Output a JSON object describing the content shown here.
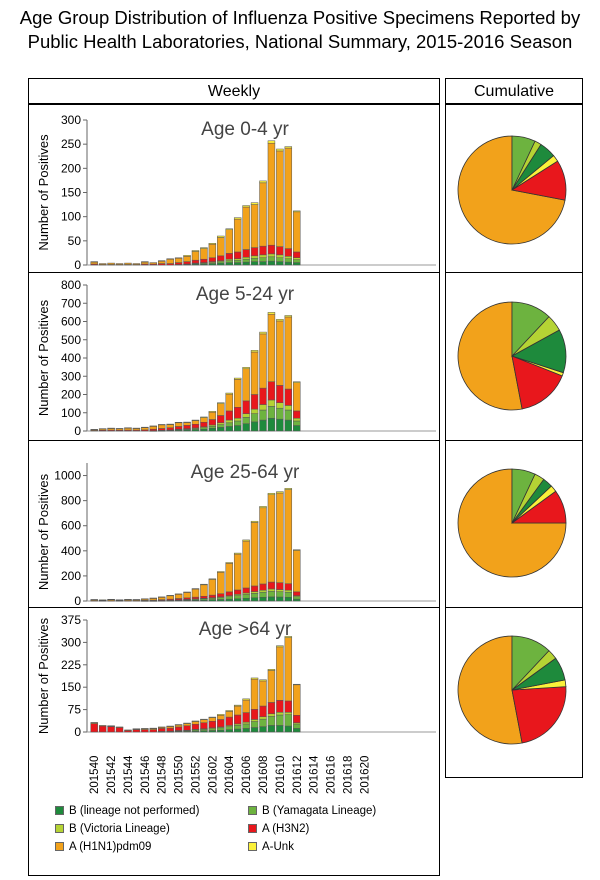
{
  "title_line1": "Age Group Distribution of Influenza Positive Specimens Reported by",
  "title_line2": "Public Health Laboratories, National Summary, 2015-2016 Season",
  "weekly_header": "Weekly",
  "cumulative_header": "Cumulative",
  "colors": {
    "b_lineage_not_performed": "#1e8a3c",
    "b_yamagata": "#6db33f",
    "b_victoria": "#b5d334",
    "a_h3n2": "#e8171c",
    "a_h1n1pdm09": "#f2a21b",
    "a_unk": "#fbf13a"
  },
  "legend": [
    {
      "key": "b_lineage_not_performed",
      "label": "B (lineage not performed)"
    },
    {
      "key": "b_yamagata",
      "label": "B (Yamagata Lineage)"
    },
    {
      "key": "b_victoria",
      "label": "B (Victoria Lineage)"
    },
    {
      "key": "a_h3n2",
      "label": "A (H3N2)"
    },
    {
      "key": "a_h1n1pdm09",
      "label": "A (H1N1)pdm09"
    },
    {
      "key": "a_unk",
      "label": "A-Unk"
    }
  ],
  "chart_data": [
    {
      "type": "bar",
      "stacked": true,
      "title": "Age 0-4 yr",
      "ylabel": "Number of Positives",
      "ylim": [
        0,
        300
      ],
      "yticks": [
        0,
        50,
        100,
        150,
        200,
        250,
        300
      ],
      "x_ticks": [
        "201540",
        "201542",
        "201544",
        "201546",
        "201548",
        "201550",
        "201552",
        "201602",
        "201604",
        "201606",
        "201608",
        "201610",
        "201612",
        "201614",
        "201616",
        "201618",
        "201620"
      ],
      "categories": [
        "201540",
        "201541",
        "201542",
        "201543",
        "201544",
        "201545",
        "201546",
        "201547",
        "201548",
        "201549",
        "201550",
        "201551",
        "201552",
        "201553",
        "201601",
        "201602",
        "201603",
        "201604",
        "201605",
        "201606",
        "201607",
        "201608",
        "201609",
        "201610",
        "201611"
      ],
      "series": [
        {
          "key": "b_lineage_not_performed",
          "values": [
            0,
            0,
            0,
            0,
            0,
            0,
            0,
            0,
            0,
            0,
            1,
            1,
            2,
            2,
            3,
            4,
            5,
            5,
            6,
            7,
            7,
            8,
            7,
            6,
            5
          ]
        },
        {
          "key": "b_yamagata",
          "values": [
            0,
            0,
            0,
            0,
            0,
            0,
            0,
            0,
            0,
            0,
            0,
            1,
            1,
            2,
            2,
            3,
            4,
            5,
            6,
            7,
            8,
            9,
            8,
            7,
            6
          ]
        },
        {
          "key": "b_victoria",
          "values": [
            0,
            0,
            0,
            0,
            0,
            0,
            0,
            0,
            0,
            0,
            0,
            0,
            1,
            1,
            2,
            2,
            3,
            3,
            4,
            5,
            6,
            6,
            6,
            5,
            4
          ]
        },
        {
          "key": "a_h3n2",
          "values": [
            2,
            1,
            1,
            1,
            1,
            1,
            2,
            2,
            3,
            3,
            4,
            5,
            6,
            7,
            8,
            10,
            12,
            14,
            16,
            17,
            18,
            18,
            17,
            16,
            12
          ]
        },
        {
          "key": "a_h1n1pdm09",
          "values": [
            4,
            2,
            3,
            2,
            3,
            2,
            4,
            3,
            5,
            9,
            9,
            11,
            18,
            22,
            28,
            38,
            49,
            68,
            88,
            89,
            131,
            211,
            198,
            208,
            83
          ]
        },
        {
          "key": "a_unk",
          "values": [
            1,
            0,
            0,
            0,
            0,
            0,
            1,
            0,
            1,
            1,
            1,
            2,
            2,
            2,
            2,
            3,
            2,
            3,
            3,
            4,
            4,
            5,
            4,
            3,
            2
          ]
        }
      ],
      "pie": {
        "a_h1n1pdm09": 72,
        "a_h3n2": 12,
        "a_unk": 2,
        "b_victoria": 2,
        "b_lineage_not_performed": 5,
        "b_yamagata": 7
      }
    },
    {
      "type": "bar",
      "stacked": true,
      "title": "Age 5-24 yr",
      "ylabel": "Number of Positives",
      "ylim": [
        0,
        800
      ],
      "yticks": [
        0,
        100,
        200,
        300,
        400,
        500,
        600,
        700,
        800
      ],
      "x_ticks": [
        "201540",
        "201542",
        "201544",
        "201546",
        "201548",
        "201550",
        "201552",
        "201602",
        "201604",
        "201606",
        "201608",
        "201610",
        "201612",
        "201614",
        "201616",
        "201618",
        "201620"
      ],
      "categories": [
        "201540",
        "201541",
        "201542",
        "201543",
        "201544",
        "201545",
        "201546",
        "201547",
        "201548",
        "201549",
        "201550",
        "201551",
        "201552",
        "201553",
        "201601",
        "201602",
        "201603",
        "201604",
        "201605",
        "201606",
        "201607",
        "201608",
        "201609",
        "201610",
        "201611"
      ],
      "series": [
        {
          "key": "b_lineage_not_performed",
          "values": [
            0,
            0,
            0,
            0,
            0,
            0,
            0,
            1,
            2,
            3,
            5,
            6,
            8,
            10,
            15,
            20,
            25,
            30,
            40,
            50,
            60,
            70,
            65,
            60,
            30
          ]
        },
        {
          "key": "b_yamagata",
          "values": [
            0,
            0,
            0,
            0,
            0,
            0,
            0,
            1,
            1,
            2,
            3,
            4,
            5,
            8,
            10,
            15,
            20,
            25,
            35,
            45,
            55,
            65,
            60,
            55,
            25
          ]
        },
        {
          "key": "b_victoria",
          "values": [
            0,
            0,
            0,
            0,
            0,
            0,
            0,
            0,
            1,
            1,
            2,
            3,
            4,
            5,
            8,
            10,
            15,
            15,
            20,
            25,
            30,
            35,
            30,
            25,
            15
          ]
        },
        {
          "key": "a_h3n2",
          "values": [
            3,
            4,
            5,
            4,
            5,
            5,
            6,
            8,
            10,
            12,
            15,
            18,
            20,
            25,
            30,
            40,
            50,
            60,
            70,
            80,
            90,
            100,
            95,
            90,
            40
          ]
        },
        {
          "key": "a_h1n1pdm09",
          "values": [
            5,
            8,
            10,
            9,
            12,
            10,
            14,
            16,
            20,
            18,
            20,
            15,
            20,
            25,
            40,
            65,
            92,
            153,
            176,
            233,
            297,
            370,
            353,
            395,
            155
          ]
        },
        {
          "key": "a_unk",
          "values": [
            1,
            1,
            1,
            1,
            1,
            1,
            1,
            2,
            2,
            2,
            3,
            3,
            3,
            4,
            5,
            5,
            6,
            7,
            8,
            9,
            10,
            10,
            9,
            8,
            5
          ]
        }
      ],
      "pie": {
        "a_h1n1pdm09": 53,
        "a_h3n2": 16,
        "a_unk": 1,
        "b_lineage_not_performed": 13,
        "b_victoria": 5,
        "b_yamagata": 12
      }
    },
    {
      "type": "bar",
      "stacked": true,
      "title": "Age 25-64 yr",
      "ylabel": "Number of Positives",
      "ylim": [
        0,
        1100
      ],
      "yticks": [
        0,
        200,
        400,
        600,
        800,
        1000
      ],
      "x_ticks": [
        "201540",
        "201542",
        "201544",
        "201546",
        "201548",
        "201550",
        "201552",
        "201602",
        "201604",
        "201606",
        "201608",
        "201610",
        "201612",
        "201614",
        "201616",
        "201618",
        "201620"
      ],
      "categories": [
        "201540",
        "201541",
        "201542",
        "201543",
        "201544",
        "201545",
        "201546",
        "201547",
        "201548",
        "201549",
        "201550",
        "201551",
        "201552",
        "201553",
        "201601",
        "201602",
        "201603",
        "201604",
        "201605",
        "201606",
        "201607",
        "201608",
        "201609",
        "201610",
        "201611"
      ],
      "series": [
        {
          "key": "b_lineage_not_performed",
          "values": [
            0,
            0,
            0,
            0,
            0,
            0,
            1,
            1,
            2,
            3,
            4,
            5,
            6,
            8,
            10,
            12,
            15,
            18,
            22,
            26,
            30,
            33,
            32,
            30,
            15
          ]
        },
        {
          "key": "b_yamagata",
          "values": [
            0,
            0,
            0,
            0,
            0,
            0,
            0,
            1,
            2,
            3,
            4,
            6,
            8,
            10,
            12,
            15,
            20,
            25,
            30,
            35,
            40,
            45,
            42,
            40,
            20
          ]
        },
        {
          "key": "b_victoria",
          "values": [
            0,
            0,
            0,
            0,
            0,
            0,
            0,
            0,
            1,
            1,
            2,
            2,
            3,
            4,
            5,
            6,
            8,
            10,
            12,
            14,
            16,
            18,
            17,
            16,
            8
          ]
        },
        {
          "key": "a_h3n2",
          "values": [
            3,
            2,
            3,
            2,
            3,
            3,
            4,
            5,
            6,
            8,
            10,
            12,
            14,
            16,
            20,
            25,
            30,
            35,
            40,
            45,
            50,
            55,
            55,
            52,
            30
          ]
        },
        {
          "key": "a_h1n1pdm09",
          "values": [
            8,
            6,
            10,
            7,
            9,
            8,
            12,
            15,
            20,
            28,
            34,
            44,
            64,
            91,
            125,
            171,
            227,
            286,
            374,
            506,
            607,
            696,
            715,
            750,
            330
          ]
        },
        {
          "key": "a_unk",
          "values": [
            1,
            1,
            1,
            1,
            1,
            1,
            1,
            2,
            2,
            2,
            3,
            3,
            4,
            5,
            5,
            6,
            7,
            8,
            9,
            10,
            11,
            12,
            11,
            10,
            6
          ]
        }
      ],
      "pie": {
        "a_h1n1pdm09": 75,
        "a_h3n2": 10,
        "a_unk": 2,
        "b_lineage_not_performed": 3,
        "b_victoria": 3,
        "b_yamagata": 7
      }
    },
    {
      "type": "bar",
      "stacked": true,
      "title": "Age >64 yr",
      "ylabel": "Number of Positives",
      "ylim": [
        0,
        375
      ],
      "yticks": [
        0,
        75,
        150,
        225,
        300,
        375
      ],
      "x_ticks": [
        "201540",
        "201542",
        "201544",
        "201546",
        "201548",
        "201550",
        "201552",
        "201602",
        "201604",
        "201606",
        "201608",
        "201610",
        "201612",
        "201614",
        "201616",
        "201618",
        "201620"
      ],
      "categories": [
        "201540",
        "201541",
        "201542",
        "201543",
        "201544",
        "201545",
        "201546",
        "201547",
        "201548",
        "201549",
        "201550",
        "201551",
        "201552",
        "201553",
        "201601",
        "201602",
        "201603",
        "201604",
        "201605",
        "201606",
        "201607",
        "201608",
        "201609",
        "201610",
        "201611"
      ],
      "series": [
        {
          "key": "b_lineage_not_performed",
          "values": [
            0,
            0,
            0,
            0,
            0,
            0,
            0,
            0,
            1,
            1,
            2,
            2,
            3,
            4,
            5,
            6,
            8,
            10,
            12,
            15,
            18,
            22,
            22,
            20,
            12
          ]
        },
        {
          "key": "b_yamagata",
          "values": [
            0,
            0,
            0,
            0,
            0,
            0,
            0,
            0,
            1,
            1,
            2,
            3,
            4,
            5,
            6,
            8,
            10,
            12,
            15,
            20,
            25,
            30,
            35,
            38,
            15
          ]
        },
        {
          "key": "b_victoria",
          "values": [
            0,
            0,
            0,
            0,
            0,
            0,
            0,
            0,
            0,
            1,
            1,
            1,
            2,
            2,
            3,
            3,
            4,
            5,
            6,
            7,
            8,
            9,
            9,
            8,
            4
          ]
        },
        {
          "key": "a_h3n2",
          "values": [
            28,
            20,
            18,
            15,
            5,
            8,
            8,
            8,
            10,
            10,
            12,
            15,
            17,
            20,
            22,
            25,
            28,
            30,
            32,
            34,
            36,
            38,
            40,
            38,
            25
          ]
        },
        {
          "key": "a_h1n1pdm09",
          "values": [
            3,
            2,
            2,
            2,
            2,
            2,
            3,
            4,
            4,
            6,
            7,
            7,
            9,
            10,
            12,
            14,
            19,
            30,
            42,
            101,
            84,
            107,
            179,
            212,
            102
          ]
        },
        {
          "key": "a_unk",
          "values": [
            1,
            0,
            1,
            0,
            0,
            1,
            1,
            1,
            1,
            1,
            1,
            2,
            2,
            2,
            2,
            3,
            3,
            3,
            4,
            4,
            4,
            4,
            4,
            4,
            2
          ]
        }
      ],
      "pie": {
        "a_h1n1pdm09": 53,
        "a_h3n2": 23,
        "a_unk": 2,
        "b_lineage_not_performed": 7,
        "b_victoria": 3,
        "b_yamagata": 12
      }
    }
  ]
}
